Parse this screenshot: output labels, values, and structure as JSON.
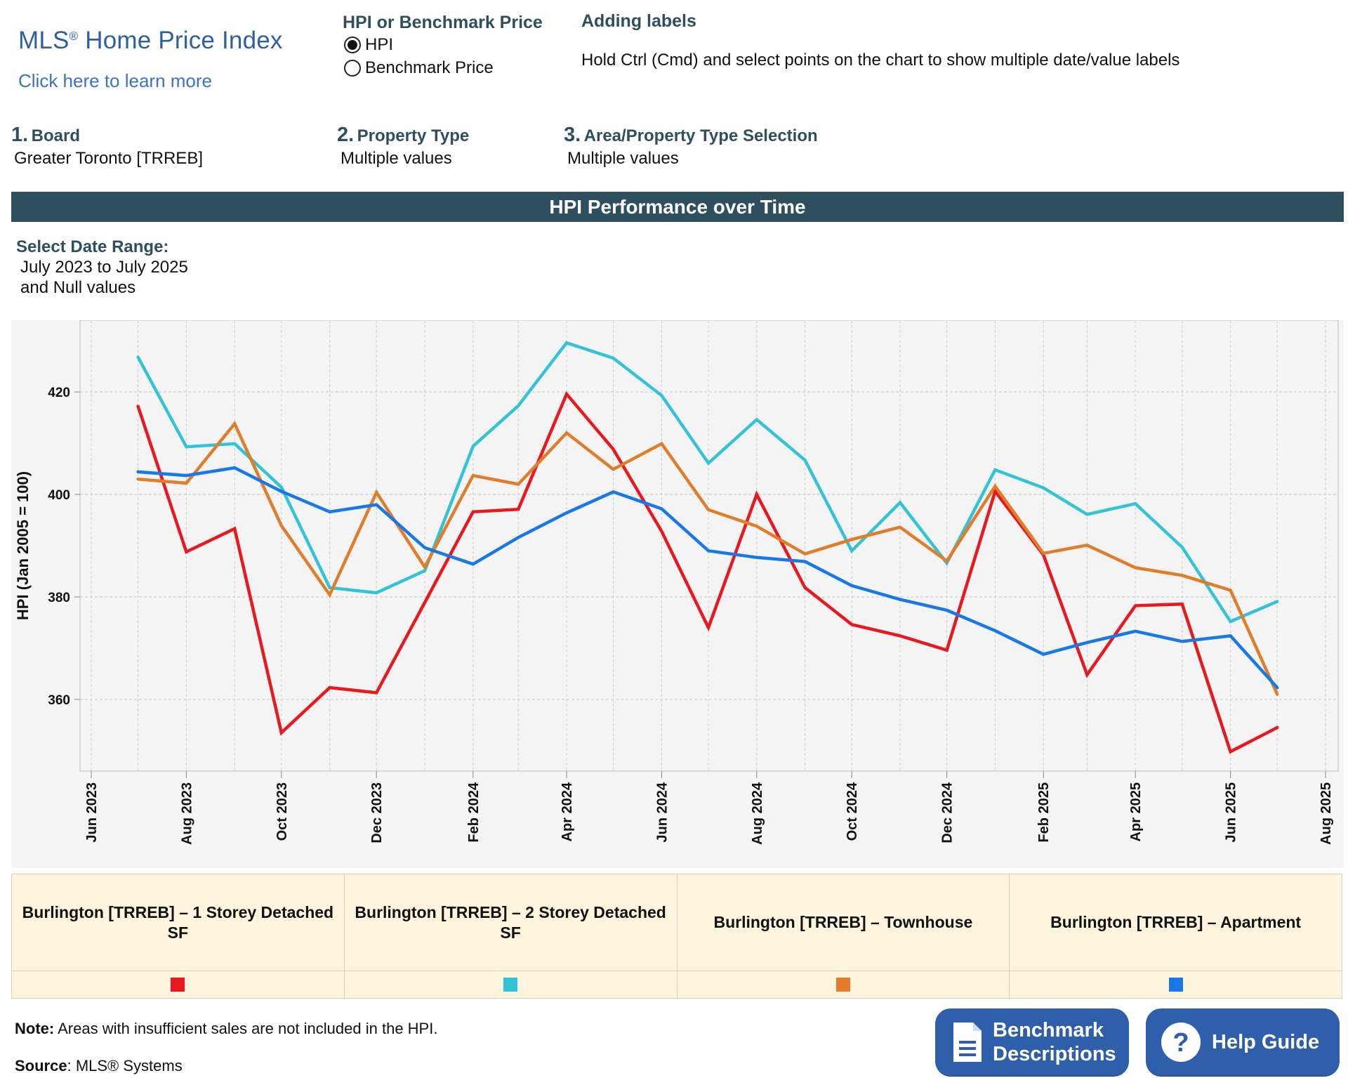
{
  "header": {
    "logo_title": "MLS",
    "logo_reg": "®",
    "logo_title_rest": " Home Price Index",
    "learn_more": "Click here to learn more",
    "hpi_or_benchmark_heading": "HPI or Benchmark Price",
    "radio_options": [
      {
        "label": "HPI",
        "selected": true
      },
      {
        "label": "Benchmark Price",
        "selected": false
      }
    ],
    "adding_labels_heading": "Adding labels",
    "adding_labels_text": "Hold Ctrl (Cmd) and select points on the chart to show multiple date/value labels"
  },
  "filters": [
    {
      "num": "1.",
      "label": "Board",
      "value": "Greater Toronto [TRREB]"
    },
    {
      "num": "2.",
      "label": "Property Type",
      "value": "Multiple values"
    },
    {
      "num": "3.",
      "label": "Area/Property Type Selection",
      "value": "Multiple values"
    }
  ],
  "banner_title": "HPI Performance over Time",
  "date_range": {
    "heading": "Select Date Range:",
    "line1": "July 2023 to July 2025",
    "line2": "and Null values"
  },
  "chart_data": {
    "type": "line",
    "ylabel": "HPI (Jan 2005 = 100)",
    "xlabel": "",
    "ylim": [
      346,
      434
    ],
    "yticks": [
      360,
      380,
      400,
      420
    ],
    "grid": true,
    "x_range": [
      "2023-06-01",
      "2025-08-01"
    ],
    "x_tick_labels": [
      "Jun 2023",
      "Aug 2023",
      "Oct 2023",
      "Dec 2023",
      "Feb 2024",
      "Apr 2024",
      "Jun 2024",
      "Aug 2024",
      "Oct 2024",
      "Dec 2024",
      "Feb 2025",
      "Apr 2025",
      "Jun 2025",
      "Aug 2025"
    ],
    "x_tick_dates": [
      "2023-06-01",
      "2023-08-01",
      "2023-10-01",
      "2023-12-01",
      "2024-02-01",
      "2024-04-01",
      "2024-06-01",
      "2024-08-01",
      "2024-10-01",
      "2024-12-01",
      "2025-02-01",
      "2025-04-01",
      "2025-06-01",
      "2025-08-01"
    ],
    "x": [
      "2023-07-01",
      "2023-08-01",
      "2023-09-01",
      "2023-10-01",
      "2023-11-01",
      "2023-12-01",
      "2024-01-01",
      "2024-02-01",
      "2024-03-01",
      "2024-04-01",
      "2024-05-01",
      "2024-06-01",
      "2024-07-01",
      "2024-08-01",
      "2024-09-01",
      "2024-10-01",
      "2024-11-01",
      "2024-12-01",
      "2025-01-01",
      "2025-02-01",
      "2025-03-01",
      "2025-04-01",
      "2025-05-01",
      "2025-06-01",
      "2025-07-01"
    ],
    "series": [
      {
        "name": "Burlington [TRREB] – 1 Storey Detached SF",
        "color": "#e8191e",
        "values": [
          417.2,
          388.8,
          393.3,
          353.5,
          362.3,
          361.3,
          378.9,
          396.6,
          397.1,
          419.6,
          408.8,
          392.8,
          374.0,
          400.0,
          381.8,
          374.6,
          372.4,
          369.6,
          400.6,
          388.2,
          364.8,
          378.3,
          378.6,
          349.8,
          354.5
        ]
      },
      {
        "name": "Burlington [TRREB] – 2 Storey Detached SF",
        "color": "#34c3d6",
        "values": [
          426.8,
          409.3,
          409.9,
          401.4,
          381.8,
          380.8,
          385.1,
          409.4,
          417.3,
          429.6,
          426.6,
          419.3,
          406.1,
          414.6,
          406.7,
          389.0,
          398.4,
          386.6,
          404.8,
          401.3,
          396.1,
          398.2,
          389.7,
          375.2,
          379.1
        ]
      },
      {
        "name": "Burlington [TRREB] – Townhouse",
        "color": "#e07d2b",
        "values": [
          403.0,
          402.2,
          413.8,
          393.9,
          380.4,
          400.4,
          385.8,
          403.7,
          402.0,
          412.0,
          404.9,
          409.9,
          397.0,
          393.8,
          388.4,
          391.2,
          393.6,
          387.0,
          401.6,
          388.5,
          390.1,
          385.7,
          384.2,
          381.3,
          361.0
        ]
      },
      {
        "name": "Burlington [TRREB] – Apartment",
        "color": "#1978e8",
        "values": [
          404.4,
          403.7,
          405.2,
          400.6,
          396.6,
          398.0,
          389.6,
          386.4,
          391.6,
          396.4,
          400.5,
          397.2,
          389.0,
          387.7,
          386.9,
          382.2,
          379.5,
          377.4,
          373.4,
          368.8,
          371.1,
          373.3,
          371.3,
          372.4,
          362.3
        ]
      }
    ]
  },
  "legend": [
    {
      "label": "Burlington [TRREB] – 1 Storey Detached SF",
      "color": "#e8191e"
    },
    {
      "label": "Burlington [TRREB] – 2 Storey Detached SF",
      "color": "#34c3d6"
    },
    {
      "label": "Burlington [TRREB] – Townhouse",
      "color": "#e07d2b"
    },
    {
      "label": "Burlington [TRREB] – Apartment",
      "color": "#1978e8"
    }
  ],
  "footer": {
    "note_bold": "Note:",
    "note_text": " Areas with insufficient sales are not included in the HPI.",
    "source_bold": "Source",
    "source_text": ": MLS® Systems"
  },
  "buttons": {
    "benchmark_line1": "Benchmark",
    "benchmark_line2": "Descriptions",
    "benchmark_icon": "document-icon",
    "help_label": "Help Guide",
    "help_icon": "question-circle-icon"
  }
}
